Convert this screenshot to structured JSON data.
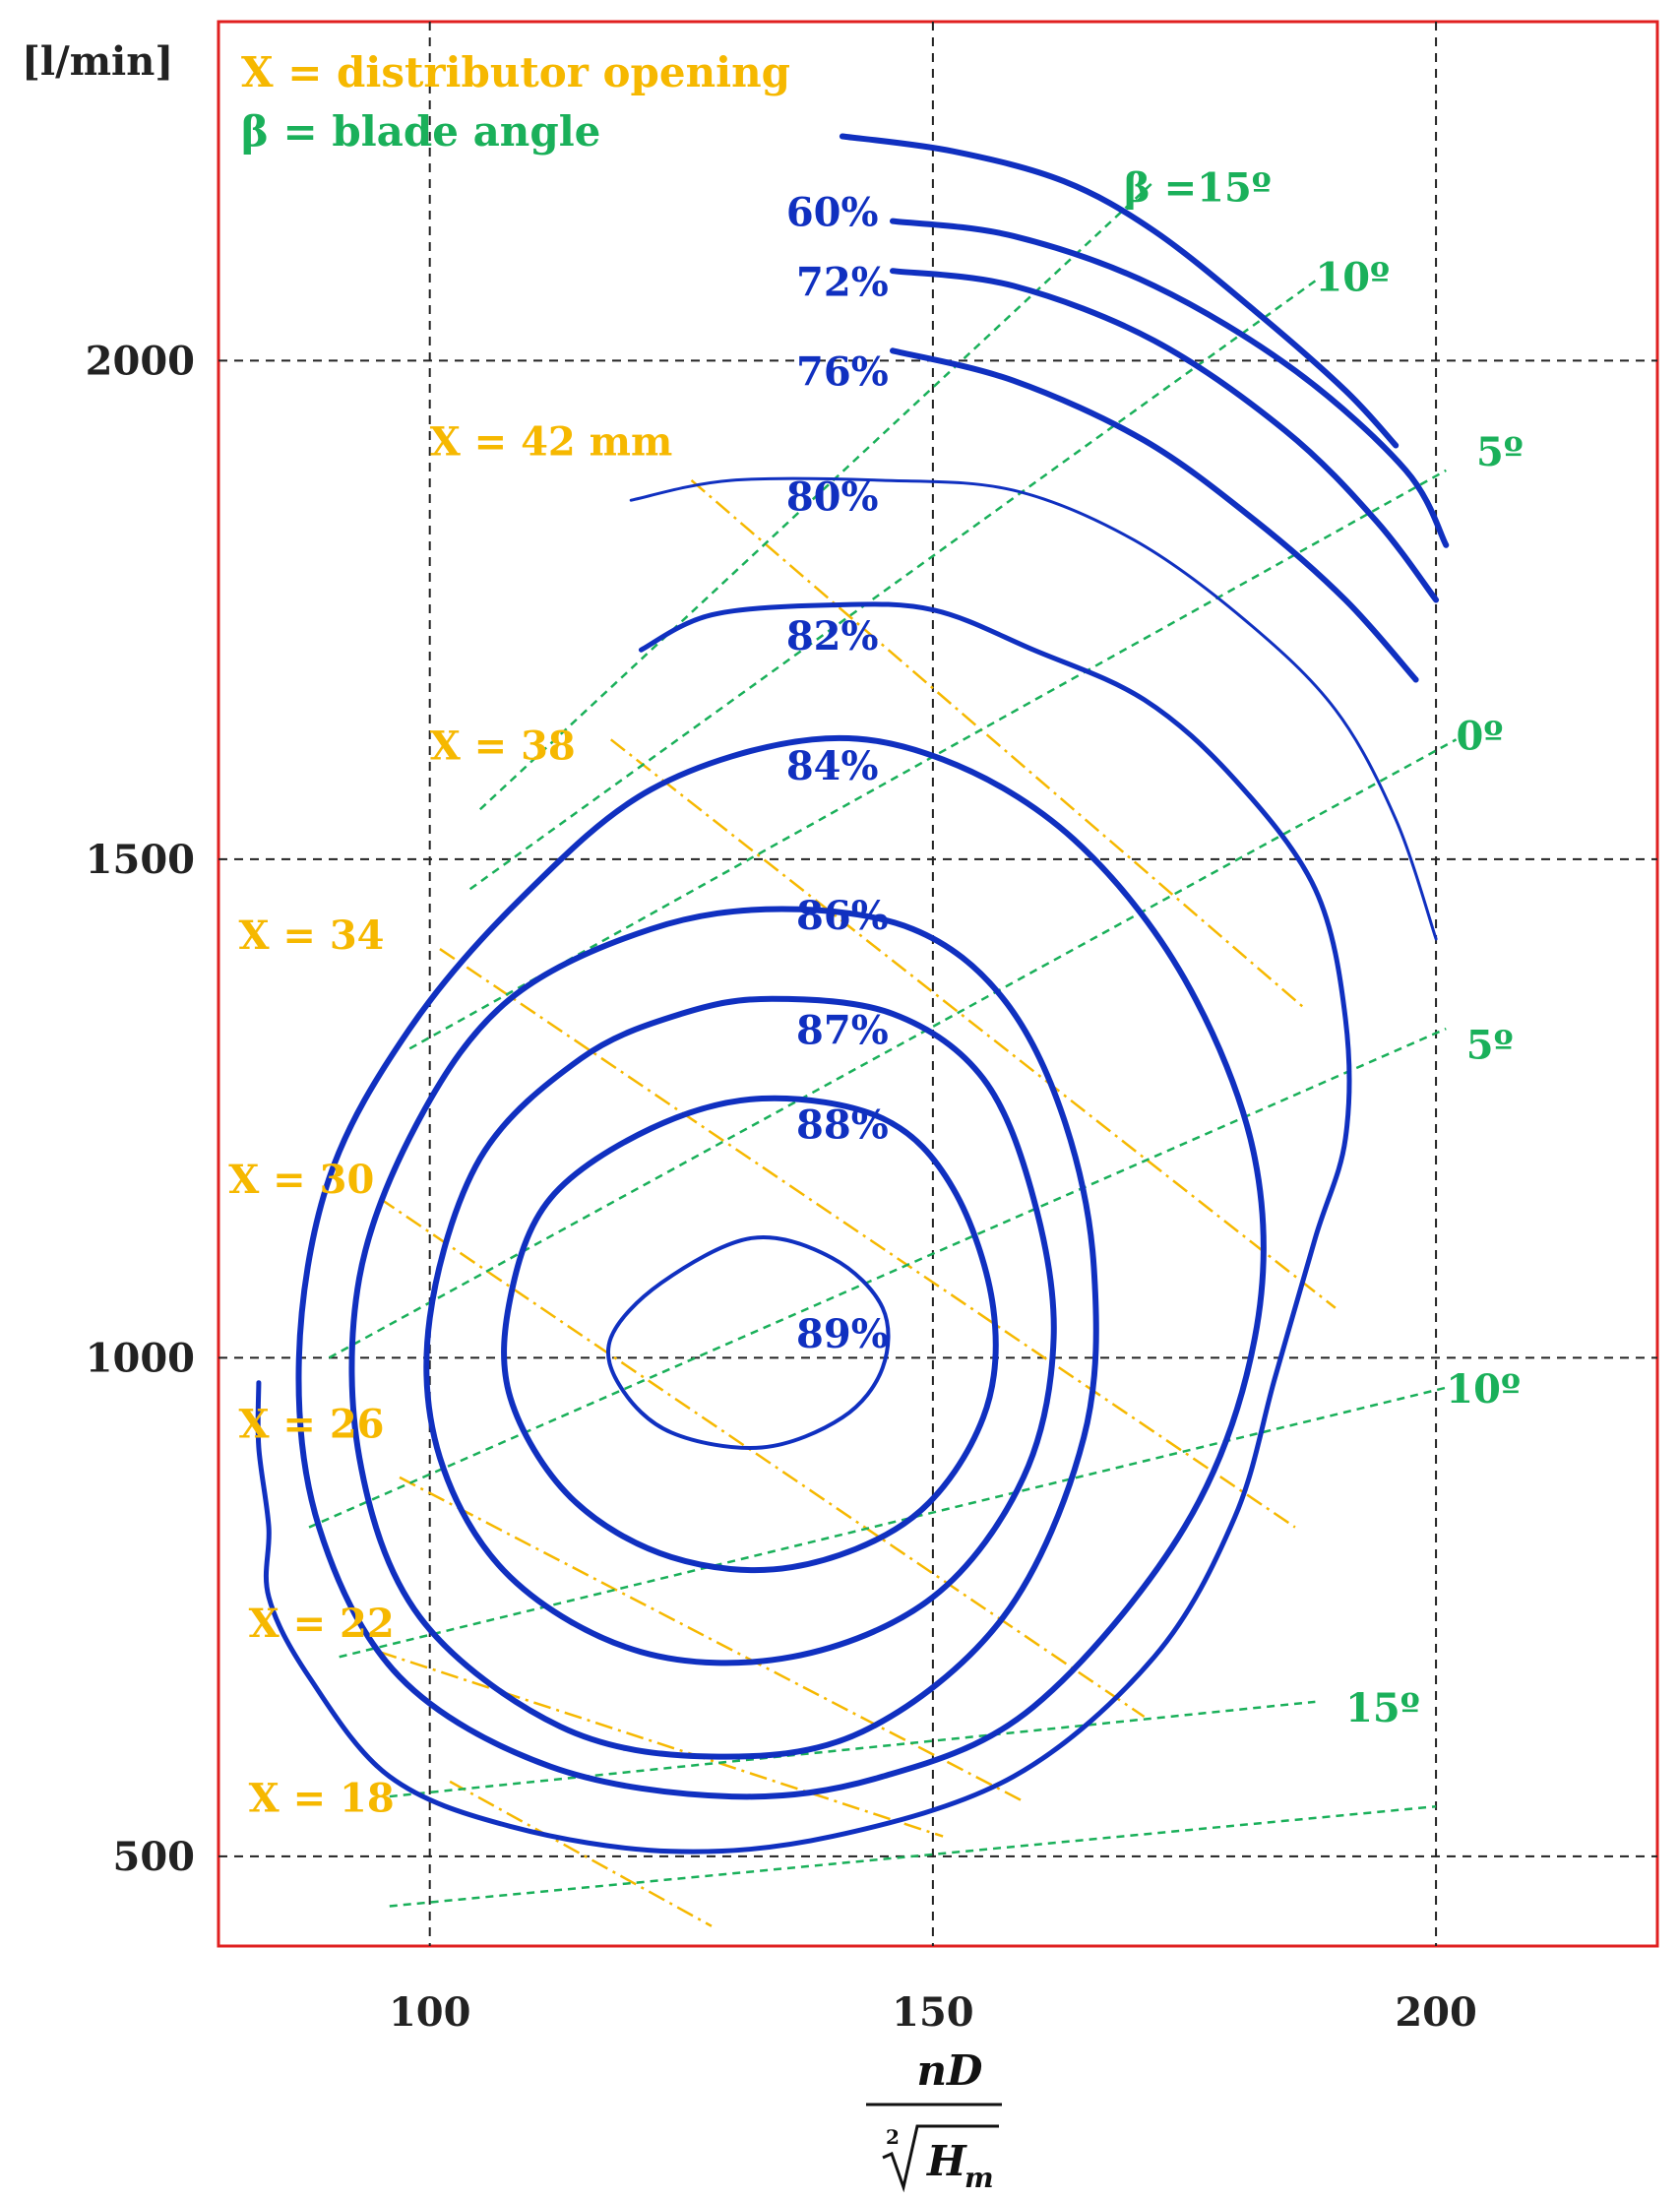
{
  "chart_data": {
    "type": "contour",
    "ylabel": "[l/min]",
    "xlabel_numerator": "nD",
    "xlabel_root_index": "2",
    "xlabel_radicand": "H",
    "xlabel_radicand_sub": "m",
    "xlim": [
      79,
      222
    ],
    "ylim": [
      410,
      2340
    ],
    "x_ticks": [
      100,
      150,
      200
    ],
    "y_ticks": [
      500,
      1000,
      1500,
      2000
    ],
    "x_tick_labels": [
      "100",
      "150",
      "200"
    ],
    "y_tick_labels": [
      "500",
      "1000",
      "1500",
      "2000"
    ],
    "grid": "dashed, at major ticks",
    "legend": [
      {
        "text": "X = distributor opening",
        "color": "#f6b800"
      },
      {
        "text": "β = blade angle",
        "color": "#1ab05a"
      }
    ],
    "colors": {
      "efficiency": "#1030c0",
      "opening": "#f6b800",
      "blade": "#1ab05a",
      "frame": "#e02020",
      "grid": "#222222"
    },
    "efficiency_contours": [
      {
        "label": "89%",
        "label_at": [
          141,
          1010
        ],
        "width": 4,
        "points": [
          [
            132,
            1120
          ],
          [
            140,
            1100
          ],
          [
            145,
            1050
          ],
          [
            145,
            990
          ],
          [
            141,
            940
          ],
          [
            133,
            910
          ],
          [
            124,
            925
          ],
          [
            119,
            970
          ],
          [
            118,
            1020
          ],
          [
            123,
            1075
          ]
        ],
        "closed": true
      },
      {
        "label": "88%",
        "label_at": [
          141,
          1220
        ],
        "width": 6,
        "points": [
          [
            133,
            1260
          ],
          [
            145,
            1240
          ],
          [
            152,
            1170
          ],
          [
            156,
            1050
          ],
          [
            155,
            940
          ],
          [
            148,
            840
          ],
          [
            136,
            790
          ],
          [
            124,
            800
          ],
          [
            114,
            860
          ],
          [
            108,
            960
          ],
          [
            108,
            1060
          ],
          [
            112,
            1160
          ],
          [
            122,
            1230
          ]
        ],
        "closed": true
      },
      {
        "label": "87%",
        "label_at": [
          141,
          1315
        ],
        "width": 6,
        "points": [
          [
            134,
            1360
          ],
          [
            146,
            1345
          ],
          [
            155,
            1280
          ],
          [
            160,
            1160
          ],
          [
            162,
            1020
          ],
          [
            159,
            880
          ],
          [
            150,
            760
          ],
          [
            136,
            700
          ],
          [
            121,
            705
          ],
          [
            108,
            780
          ],
          [
            101,
            900
          ],
          [
            100,
            1040
          ],
          [
            105,
            1200
          ],
          [
            115,
            1300
          ],
          [
            125,
            1345
          ]
        ],
        "closed": true
      },
      {
        "label": "86%",
        "label_at": [
          141,
          1430
        ],
        "width": 6,
        "points": [
          [
            135,
            1450
          ],
          [
            148,
            1430
          ],
          [
            157,
            1360
          ],
          [
            163,
            1240
          ],
          [
            166,
            1090
          ],
          [
            165,
            920
          ],
          [
            157,
            740
          ],
          [
            143,
            625
          ],
          [
            128,
            600
          ],
          [
            113,
            630
          ],
          [
            99,
            740
          ],
          [
            93,
            900
          ],
          [
            93,
            1080
          ],
          [
            99,
            1240
          ],
          [
            108,
            1360
          ],
          [
            122,
            1430
          ]
        ],
        "closed": true
      },
      {
        "label": "84%",
        "label_at": [
          140,
          1580
        ],
        "width": 6,
        "points": [
          [
            138,
            1620
          ],
          [
            151,
            1600
          ],
          [
            164,
            1520
          ],
          [
            175,
            1380
          ],
          [
            182,
            1200
          ],
          [
            182,
            1020
          ],
          [
            175,
            830
          ],
          [
            160,
            650
          ],
          [
            145,
            580
          ],
          [
            130,
            560
          ],
          [
            112,
            590
          ],
          [
            97,
            680
          ],
          [
            89,
            830
          ],
          [
            87,
            1000
          ],
          [
            90,
            1180
          ],
          [
            98,
            1330
          ],
          [
            109,
            1460
          ],
          [
            122,
            1570
          ]
        ],
        "closed": true
      },
      {
        "label": "82%",
        "label_at": [
          140,
          1710
        ],
        "width": 5,
        "points": [
          [
            121,
            1710
          ],
          [
            128,
            1745
          ],
          [
            140,
            1755
          ],
          [
            150,
            1750
          ],
          [
            160,
            1710
          ],
          [
            171,
            1660
          ],
          [
            180,
            1580
          ],
          [
            188,
            1470
          ],
          [
            191,
            1340
          ],
          [
            191,
            1220
          ],
          [
            188,
            1120
          ],
          [
            184,
            980
          ],
          [
            180,
            840
          ],
          [
            172,
            700
          ],
          [
            158,
            580
          ],
          [
            140,
            520
          ],
          [
            124,
            505
          ],
          [
            108,
            530
          ],
          [
            96,
            580
          ],
          [
            88,
            680
          ],
          [
            84,
            760
          ],
          [
            84,
            830
          ],
          [
            83,
            910
          ],
          [
            83,
            975
          ]
        ],
        "closed": false
      },
      {
        "label": "80%",
        "label_at": [
          140,
          1850
        ],
        "width": 3,
        "points": [
          [
            120,
            1860
          ],
          [
            130,
            1880
          ],
          [
            145,
            1880
          ],
          [
            158,
            1870
          ],
          [
            170,
            1820
          ],
          [
            181,
            1740
          ],
          [
            190,
            1650
          ],
          [
            196,
            1540
          ],
          [
            200,
            1420
          ]
        ],
        "closed": false
      },
      {
        "label": "76%",
        "label_at": [
          141,
          1975
        ],
        "width": 6,
        "points": [
          [
            146,
            2010
          ],
          [
            158,
            1980
          ],
          [
            171,
            1920
          ],
          [
            182,
            1840
          ],
          [
            191,
            1760
          ],
          [
            198,
            1680
          ]
        ],
        "closed": false
      },
      {
        "label": "72%",
        "label_at": [
          141,
          2065
        ],
        "width": 6,
        "points": [
          [
            146,
            2090
          ],
          [
            158,
            2075
          ],
          [
            172,
            2020
          ],
          [
            185,
            1930
          ],
          [
            194,
            1840
          ],
          [
            200,
            1760
          ]
        ],
        "closed": false
      },
      {
        "label": "60%",
        "label_at": [
          140,
          2135
        ],
        "width": 6,
        "points": [
          [
            146,
            2140
          ],
          [
            158,
            2125
          ],
          [
            172,
            2075
          ],
          [
            186,
            1990
          ],
          [
            197,
            1890
          ],
          [
            201,
            1815
          ]
        ],
        "closed": false
      },
      {
        "label": "",
        "label_at": null,
        "width": 6,
        "points": [
          [
            141,
            2225
          ],
          [
            152,
            2210
          ],
          [
            163,
            2180
          ],
          [
            172,
            2130
          ],
          [
            182,
            2050
          ],
          [
            191,
            1970
          ],
          [
            196,
            1915
          ]
        ],
        "closed": false
      }
    ],
    "distributor_openings": [
      {
        "label": "X = 42 mm",
        "label_at": [
          100,
          1905
        ],
        "line": [
          [
            126,
            1880
          ],
          [
            187,
            1350
          ]
        ]
      },
      {
        "label": "X = 38",
        "label_at": [
          100,
          1600
        ],
        "line": [
          [
            118,
            1620
          ],
          [
            190,
            1050
          ]
        ]
      },
      {
        "label": "X = 34",
        "label_at": [
          81,
          1410
        ],
        "line": [
          [
            101,
            1410
          ],
          [
            186,
            830
          ]
        ]
      },
      {
        "label": "X = 30",
        "label_at": [
          80,
          1165
        ],
        "line": [
          [
            95,
            1160
          ],
          [
            171,
            640
          ]
        ]
      },
      {
        "label": "X = 26",
        "label_at": [
          81,
          920
        ],
        "line": [
          [
            97,
            880
          ],
          [
            159,
            555
          ]
        ]
      },
      {
        "label": "X = 22",
        "label_at": [
          82,
          720
        ],
        "line": [
          [
            95,
            705
          ],
          [
            151,
            520
          ]
        ]
      },
      {
        "label": "X = 18",
        "label_at": [
          82,
          545
        ],
        "line": [
          [
            102,
            575
          ],
          [
            128,
            430
          ]
        ]
      }
    ],
    "blade_angles": [
      {
        "label": "β =15º",
        "label_at": [
          169,
          2160
        ],
        "line": [
          [
            105,
            1550
          ],
          [
            172,
            2180
          ]
        ]
      },
      {
        "label": "10º",
        "label_at": [
          188,
          2070
        ],
        "line": [
          [
            104,
            1470
          ],
          [
            188,
            2080
          ]
        ]
      },
      {
        "label": "5º",
        "label_at": [
          204,
          1895
        ],
        "line": [
          [
            98,
            1310
          ],
          [
            201,
            1890
          ]
        ]
      },
      {
        "label": "0º",
        "label_at": [
          202,
          1610
        ],
        "line": [
          [
            90,
            1000
          ],
          [
            202,
            1620
          ]
        ]
      },
      {
        "label": "5º",
        "label_at": [
          203,
          1300
        ],
        "line": [
          [
            88,
            830
          ],
          [
            201,
            1330
          ]
        ]
      },
      {
        "label": "10º",
        "label_at": [
          201,
          955
        ],
        "line": [
          [
            91,
            700
          ],
          [
            201,
            970
          ]
        ]
      },
      {
        "label": "15º",
        "label_at": [
          191,
          635
        ],
        "line": [
          [
            96,
            560
          ],
          [
            188,
            655
          ]
        ]
      },
      {
        "label": "",
        "label_at": null,
        "line": [
          [
            96,
            450
          ],
          [
            200,
            550
          ]
        ]
      }
    ]
  }
}
